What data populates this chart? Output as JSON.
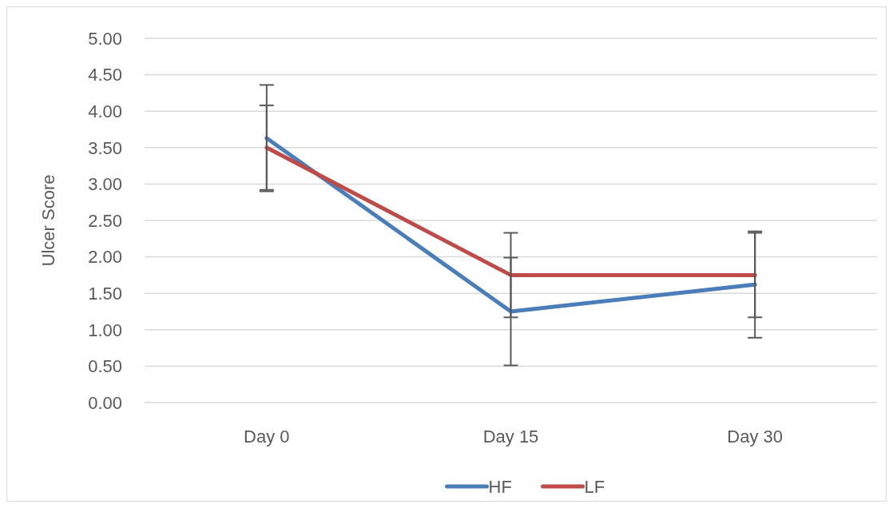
{
  "chart_data": {
    "type": "line",
    "ylabel": "Ulcer Score",
    "categories": [
      "Day 0",
      "Day 15",
      "Day 30"
    ],
    "series": [
      {
        "name": "HF",
        "color": "#4a7ebb",
        "values": [
          3.63,
          1.25,
          1.62
        ],
        "errors": [
          0.73,
          0.74,
          0.73
        ]
      },
      {
        "name": "LF",
        "color": "#be4b48",
        "values": [
          3.5,
          1.75,
          1.75
        ],
        "errors": [
          0.58,
          0.58,
          0.58
        ]
      }
    ],
    "ylim": [
      0,
      5
    ],
    "yticks": [
      {
        "value": 0,
        "label": "0.00"
      },
      {
        "value": 0.5,
        "label": "0.50"
      },
      {
        "value": 1,
        "label": "1.00"
      },
      {
        "value": 1.5,
        "label": "1.50"
      },
      {
        "value": 2,
        "label": "2.00"
      },
      {
        "value": 2.5,
        "label": "2.50"
      },
      {
        "value": 3,
        "label": "3.00"
      },
      {
        "value": 3.5,
        "label": "3.50"
      },
      {
        "value": 4,
        "label": "4.00"
      },
      {
        "value": 4.5,
        "label": "4.50"
      },
      {
        "value": 5,
        "label": "5.00"
      }
    ],
    "grid": "y",
    "legend": "bottom",
    "marker": "none",
    "line_style": "solid"
  }
}
